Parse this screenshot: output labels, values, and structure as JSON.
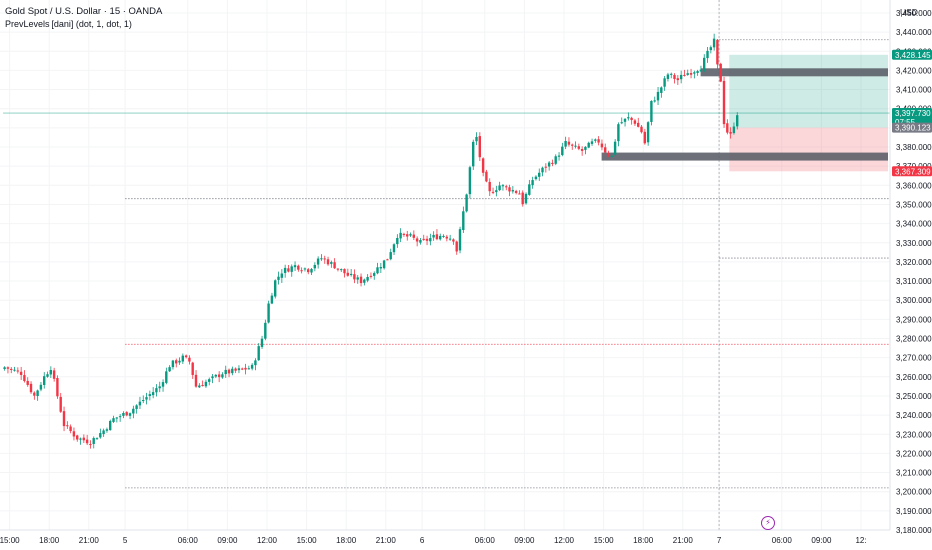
{
  "header": {
    "title": "Gold Spot / U.S. Dollar · 15 · OANDA",
    "indicator": "PrevLevels [dani] (dot, 1, dot, 1)",
    "currency": "USD"
  },
  "colors": {
    "up": "#089981",
    "down": "#f23645",
    "level": "#787b86",
    "zone": "#5d6069"
  },
  "chart_data": {
    "type": "candlestick",
    "title": "Gold Spot / U.S. Dollar · 15 · OANDA",
    "ylim": [
      3175,
      3455
    ],
    "y_ticks": [
      3180,
      3190,
      3200,
      3210,
      3220,
      3230,
      3240,
      3250,
      3260,
      3270,
      3280,
      3290,
      3300,
      3310,
      3320,
      3330,
      3340,
      3350,
      3360,
      3370,
      3380,
      3390,
      3400,
      3410,
      3420,
      3430,
      3440,
      3450
    ],
    "x_ticks": [
      {
        "label": "15:00",
        "bar": 2
      },
      {
        "label": "18:00",
        "bar": 14
      },
      {
        "label": "21:00",
        "bar": 26
      },
      {
        "label": "5",
        "bar": 37
      },
      {
        "label": "06:00",
        "bar": 56
      },
      {
        "label": "09:00",
        "bar": 68
      },
      {
        "label": "12:00",
        "bar": 80
      },
      {
        "label": "15:00",
        "bar": 92
      },
      {
        "label": "18:00",
        "bar": 104
      },
      {
        "label": "21:00",
        "bar": 116
      },
      {
        "label": "6",
        "bar": 127
      },
      {
        "label": "06:00",
        "bar": 146
      },
      {
        "label": "09:00",
        "bar": 158
      },
      {
        "label": "12:00",
        "bar": 170
      },
      {
        "label": "15:00",
        "bar": 182
      },
      {
        "label": "18:00",
        "bar": 194
      },
      {
        "label": "21:00",
        "bar": 206
      },
      {
        "label": "7",
        "bar": 217
      },
      {
        "label": "06:00",
        "bar": 236
      },
      {
        "label": "09:00",
        "bar": 248
      },
      {
        "label": "12:",
        "bar": 260
      }
    ],
    "waypoints": [
      [
        0,
        3265
      ],
      [
        5,
        3262
      ],
      [
        9,
        3250
      ],
      [
        12,
        3260
      ],
      [
        14,
        3265
      ],
      [
        18,
        3235
      ],
      [
        22,
        3228
      ],
      [
        26,
        3226
      ],
      [
        30,
        3232
      ],
      [
        33,
        3238
      ],
      [
        38,
        3242
      ],
      [
        42,
        3248
      ],
      [
        47,
        3255
      ],
      [
        50,
        3266
      ],
      [
        54,
        3270
      ],
      [
        56,
        3268
      ],
      [
        58,
        3255
      ],
      [
        62,
        3258
      ],
      [
        66,
        3262
      ],
      [
        70,
        3263
      ],
      [
        75,
        3265
      ],
      [
        78,
        3280
      ],
      [
        80,
        3298
      ],
      [
        82,
        3310
      ],
      [
        84,
        3315
      ],
      [
        88,
        3318
      ],
      [
        92,
        3316
      ],
      [
        96,
        3322
      ],
      [
        100,
        3318
      ],
      [
        104,
        3313
      ],
      [
        108,
        3310
      ],
      [
        112,
        3315
      ],
      [
        116,
        3322
      ],
      [
        119,
        3334
      ],
      [
        123,
        3333
      ],
      [
        126,
        3330
      ],
      [
        130,
        3333
      ],
      [
        133,
        3334
      ],
      [
        136,
        3332
      ],
      [
        137,
        3326
      ],
      [
        140,
        3356
      ],
      [
        142,
        3382
      ],
      [
        143,
        3385
      ],
      [
        145,
        3365
      ],
      [
        147,
        3356
      ],
      [
        150,
        3360
      ],
      [
        153,
        3358
      ],
      [
        156,
        3356
      ],
      [
        157,
        3351
      ],
      [
        160,
        3363
      ],
      [
        164,
        3370
      ],
      [
        167,
        3374
      ],
      [
        170,
        3382
      ],
      [
        172,
        3380
      ],
      [
        175,
        3378
      ],
      [
        178,
        3382
      ],
      [
        180,
        3383
      ],
      [
        182,
        3378
      ],
      [
        184,
        3375
      ],
      [
        186,
        3392
      ],
      [
        189,
        3395
      ],
      [
        191,
        3393
      ],
      [
        193,
        3388
      ],
      [
        194,
        3382
      ],
      [
        196,
        3403
      ],
      [
        198,
        3408
      ],
      [
        201,
        3418
      ],
      [
        204,
        3415
      ],
      [
        206,
        3418
      ],
      [
        209,
        3420
      ],
      [
        211,
        3422
      ],
      [
        214,
        3432
      ],
      [
        215,
        3435
      ],
      [
        216,
        3422
      ],
      [
        217,
        3415
      ],
      [
        218,
        3393
      ],
      [
        219,
        3388
      ],
      [
        220,
        3386
      ],
      [
        221,
        3392
      ],
      [
        222,
        3397.73
      ]
    ],
    "levels": [
      {
        "price": 3436,
        "from_bar": 217,
        "color": "#787b86"
      },
      {
        "price": 3397.73,
        "from_bar": 0,
        "color": "#089981"
      },
      {
        "price": 3353,
        "from_bar": 37,
        "color": "#787b86"
      },
      {
        "price": 3322,
        "from_bar": 217,
        "color": "#787b86"
      },
      {
        "price": 3277,
        "from_bar": 37,
        "color": "#f23645"
      },
      {
        "price": 3202,
        "from_bar": 37,
        "color": "#787b86"
      }
    ],
    "zones": [
      {
        "from_bar": 212,
        "price": 3419
      },
      {
        "from_bar": 182,
        "price": 3375
      }
    ],
    "position": {
      "from_bar": 221,
      "entry": 3390.123,
      "target": 3428.145,
      "stop": 3367.309
    },
    "current_time_bar": 217,
    "price_labels": [
      {
        "value": "3,428.145",
        "price": 3428.145,
        "color": "#089981"
      },
      {
        "value": "3,397.730",
        "price": 3397.73,
        "color": "#089981",
        "countdown": "07:55"
      },
      {
        "value": "3,390.123",
        "price": 3390.123,
        "color": "#787b86"
      },
      {
        "value": "3,367.309",
        "price": 3367.309,
        "color": "#f23645"
      }
    ]
  }
}
